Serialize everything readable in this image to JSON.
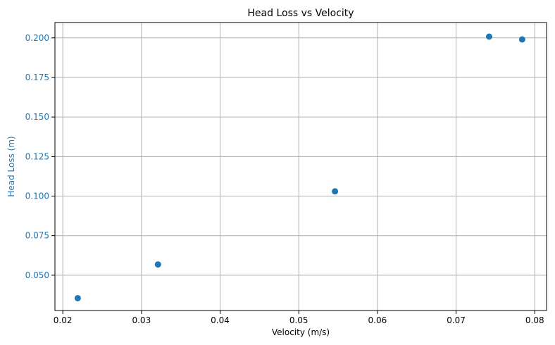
{
  "chart_data": {
    "type": "scatter",
    "title": "Head Loss vs Velocity",
    "xlabel": "Velocity (m/s)",
    "ylabel": "Head Loss (m)",
    "xlim": [
      0.019,
      0.0815
    ],
    "ylim": [
      0.0277,
      0.2097
    ],
    "xticks": [
      0.02,
      0.03,
      0.04,
      0.05,
      0.06,
      0.07,
      0.08
    ],
    "xtick_labels": [
      "0.02",
      "0.03",
      "0.04",
      "0.05",
      "0.06",
      "0.07",
      "0.08"
    ],
    "yticks": [
      0.05,
      0.075,
      0.1,
      0.125,
      0.15,
      0.175,
      0.2
    ],
    "ytick_labels": [
      "0.050",
      "0.075",
      "0.100",
      "0.125",
      "0.150",
      "0.175",
      "0.200"
    ],
    "grid": true,
    "colors": {
      "points": "#1f77b4",
      "ylabel": "#1f77b4",
      "grid": "#b0b0b0",
      "axis": "#000000"
    },
    "points": [
      {
        "x": 0.0219,
        "y": 0.0355
      },
      {
        "x": 0.0321,
        "y": 0.0568
      },
      {
        "x": 0.0546,
        "y": 0.103
      },
      {
        "x": 0.0742,
        "y": 0.2008
      },
      {
        "x": 0.0784,
        "y": 0.199
      }
    ]
  }
}
